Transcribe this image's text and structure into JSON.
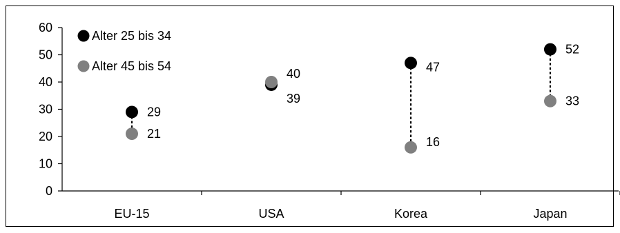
{
  "chart_data": {
    "type": "scatter",
    "categories": [
      "EU-15",
      "USA",
      "Korea",
      "Japan"
    ],
    "series": [
      {
        "name": "Alter 25 bis 34",
        "values": [
          29,
          39,
          47,
          52
        ],
        "color": "#000000"
      },
      {
        "name": "Alter 45 bis 54",
        "values": [
          21,
          40,
          16,
          33
        ],
        "color": "#808080"
      }
    ],
    "y_ticks": [
      "0",
      "10",
      "20",
      "30",
      "40",
      "50",
      "60"
    ],
    "ylim": [
      0,
      60
    ],
    "grid": false,
    "legend_position": "top-left",
    "connectors": "dotted vertical lines between series per category"
  }
}
